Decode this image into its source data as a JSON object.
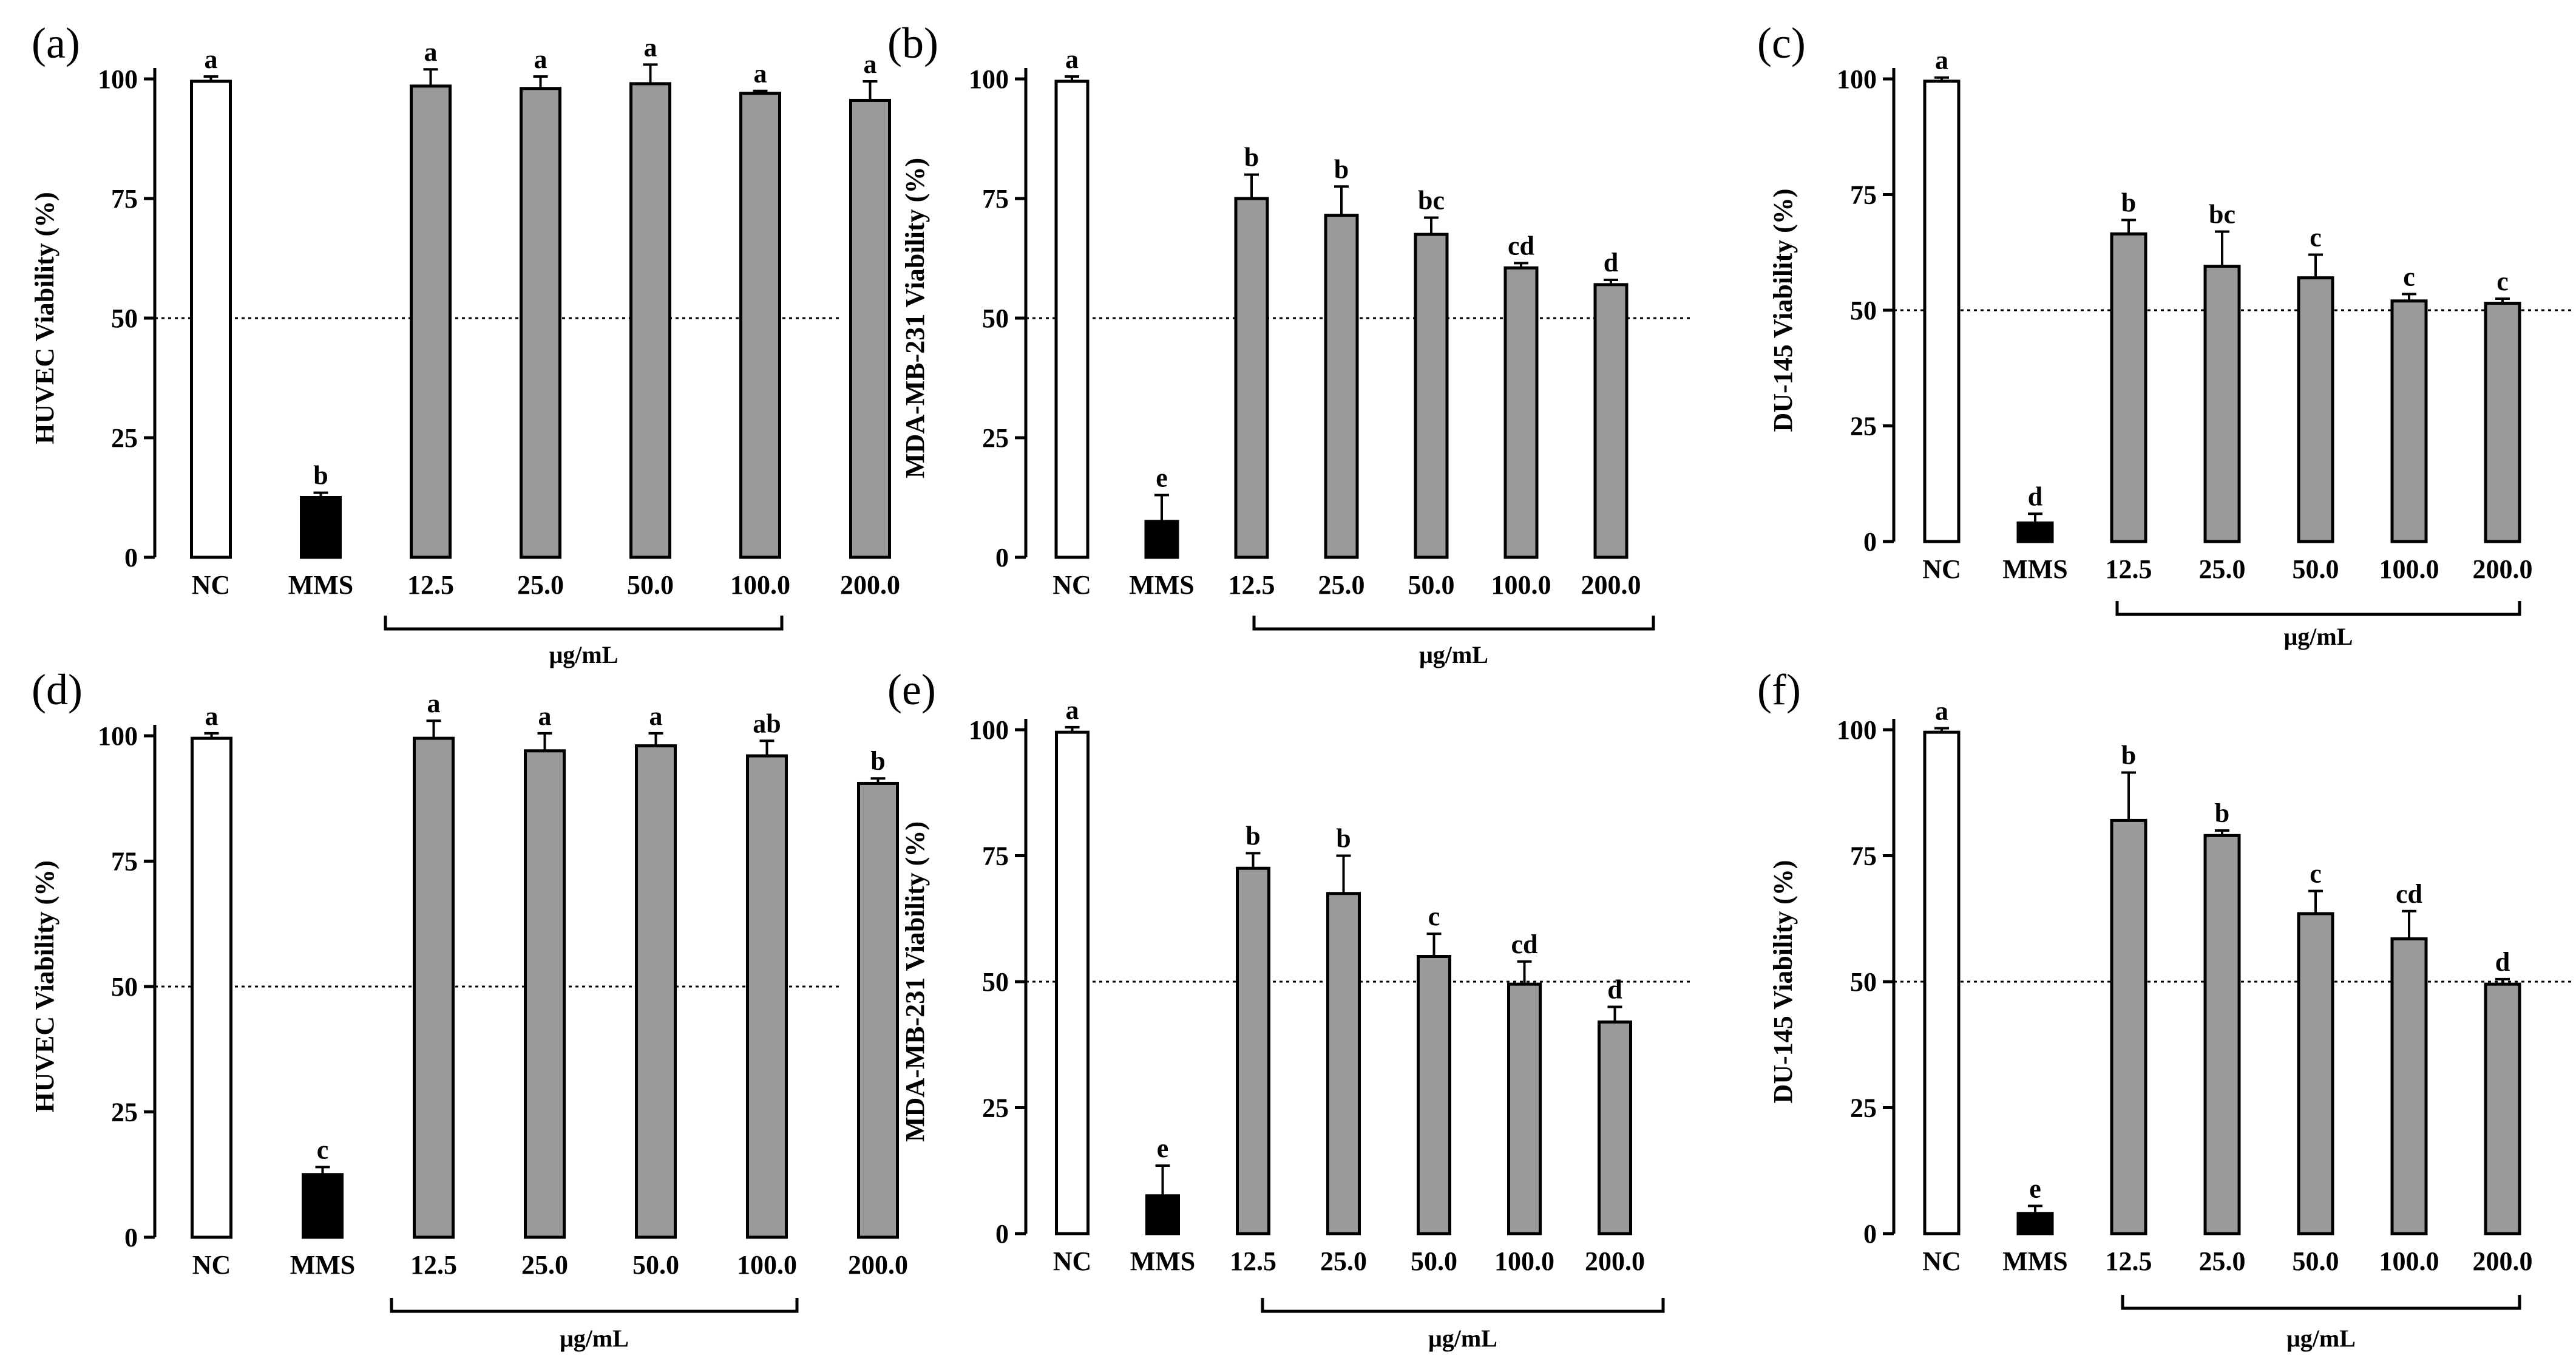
{
  "figure": {
    "categories": [
      "NC",
      "MMS",
      "12.5",
      "25.0",
      "50.0",
      "100.0",
      "200.0"
    ],
    "bar_colors": [
      "#ffffff",
      "#000000",
      "#9a9a9a",
      "#9a9a9a",
      "#9a9a9a",
      "#9a9a9a",
      "#9a9a9a"
    ],
    "bar_stroke": "#000000",
    "reference_line": 50,
    "reference_line_style": "dotted"
  },
  "chart_data": [
    {
      "type": "bar",
      "panel_label": "(a)",
      "ylabel": "HUVEC Viability (%)",
      "ylim": [
        0,
        100
      ],
      "yticks": [
        "0",
        "25",
        "50",
        "75",
        "100"
      ],
      "categories": [
        "NC",
        "MMS",
        "12.5",
        "25.0",
        "50.0",
        "100.0",
        "200.0"
      ],
      "values": [
        99.5,
        12.5,
        98.5,
        98,
        99,
        97,
        95.5
      ],
      "errors": [
        1,
        1,
        3.5,
        2.5,
        4,
        0.5,
        4
      ],
      "significance": [
        "a",
        "b",
        "a",
        "a",
        "a",
        "a",
        "a"
      ],
      "bracket_label": "μg/mL"
    },
    {
      "type": "bar",
      "panel_label": "(b)",
      "ylabel": "MDA-MB-231 Viability (%)",
      "ylim": [
        0,
        100
      ],
      "yticks": [
        "0",
        "25",
        "50",
        "75",
        "100"
      ],
      "categories": [
        "NC",
        "MMS",
        "12.5",
        "25.0",
        "50.0",
        "100.0",
        "200.0"
      ],
      "values": [
        99.5,
        7.5,
        75,
        71.5,
        67.5,
        60.5,
        57
      ],
      "errors": [
        1,
        5.5,
        5,
        6,
        3.5,
        1,
        1
      ],
      "significance": [
        "a",
        "e",
        "b",
        "b",
        "bc",
        "cd",
        "d"
      ],
      "bracket_label": "μg/mL"
    },
    {
      "type": "bar",
      "panel_label": "(c)",
      "ylabel": "DU-145 Viability (%)",
      "ylim": [
        0,
        100
      ],
      "yticks": [
        "0",
        "25",
        "50",
        "75",
        "100"
      ],
      "categories": [
        "NC",
        "MMS",
        "12.5",
        "25.0",
        "50.0",
        "100.0",
        "200.0"
      ],
      "values": [
        99.5,
        4,
        66.5,
        59.5,
        57,
        52,
        51.5
      ],
      "errors": [
        0.8,
        2,
        3,
        7.5,
        5,
        1.5,
        1
      ],
      "significance": [
        "a",
        "d",
        "b",
        "bc",
        "c",
        "c",
        "c"
      ],
      "bracket_label": "μg/mL"
    },
    {
      "type": "bar",
      "panel_label": "(d)",
      "ylabel": "HUVEC Viability (%)",
      "ylim": [
        0,
        100
      ],
      "yticks": [
        "0",
        "25",
        "50",
        "75",
        "100"
      ],
      "categories": [
        "NC",
        "MMS",
        "12.5",
        "25.0",
        "50.0",
        "100.0",
        "200.0"
      ],
      "values": [
        99.5,
        12.5,
        99.5,
        97,
        98,
        96,
        90.5
      ],
      "errors": [
        1,
        1.5,
        3.5,
        3.5,
        2.5,
        3,
        1
      ],
      "significance": [
        "a",
        "c",
        "a",
        "a",
        "a",
        "ab",
        "b"
      ],
      "bracket_label": "μg/mL"
    },
    {
      "type": "bar",
      "panel_label": "(e)",
      "ylabel": "MDA-MB-231 Viability (%)",
      "ylim": [
        0,
        100
      ],
      "yticks": [
        "0",
        "25",
        "50",
        "75",
        "100"
      ],
      "categories": [
        "NC",
        "MMS",
        "12.5",
        "25.0",
        "50.0",
        "100.0",
        "200.0"
      ],
      "values": [
        99.5,
        7.5,
        72.5,
        67.5,
        55,
        49.5,
        42
      ],
      "errors": [
        1,
        6,
        3,
        7.5,
        4.5,
        4.5,
        3
      ],
      "significance": [
        "a",
        "e",
        "b",
        "b",
        "c",
        "cd",
        "d"
      ],
      "bracket_label": "μg/mL"
    },
    {
      "type": "bar",
      "panel_label": "(f)",
      "ylabel": "DU-145 Viability (%)",
      "ylim": [
        0,
        100
      ],
      "yticks": [
        "0",
        "25",
        "50",
        "75",
        "100"
      ],
      "categories": [
        "NC",
        "MMS",
        "12.5",
        "25.0",
        "50.0",
        "100.0",
        "200.0"
      ],
      "values": [
        99.5,
        4,
        82,
        79,
        63.5,
        58.5,
        49.5
      ],
      "errors": [
        0.8,
        1.5,
        9.5,
        1,
        4.5,
        5.5,
        1
      ],
      "significance": [
        "a",
        "e",
        "b",
        "b",
        "c",
        "cd",
        "d"
      ],
      "bracket_label": "μg/mL"
    }
  ]
}
